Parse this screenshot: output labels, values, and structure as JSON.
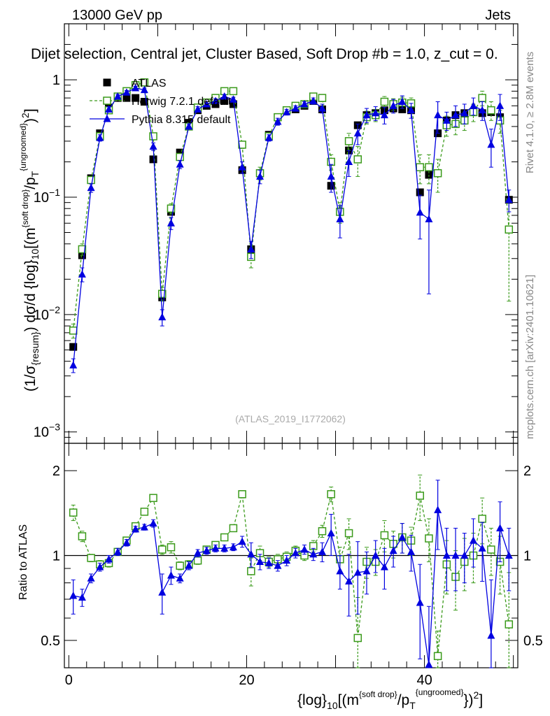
{
  "header": {
    "energy": "13000 GeV pp",
    "process": "Jets",
    "title": "Dijet selection, Central jet, Cluster Based, Soft Drop #b = 1.0, z_cut = 0.",
    "watermark": "(ATLAS_2019_I1772062)",
    "rivet": "Rivet 4.1.0, ≥ 2.8M events",
    "mcplots": "mcplots.cern.ch [arXiv:2401.10621]"
  },
  "colors": {
    "atlas": "#000000",
    "herwig": "#3a9a1a",
    "pythia": "#0000e0"
  },
  "chart_data": [
    {
      "type": "scatter",
      "name": "main-panel",
      "yscale": "log",
      "ylabel": "(1/σ_{resum}) dσ/d {log}_10[(m^{soft drop}/p_T^{ungroomed})^2]",
      "xlim": [
        -0.5,
        50.5
      ],
      "ylim": [
        0.0008,
        3.0
      ],
      "y_ticks": [
        {
          "v": 0.001,
          "label": "10^-3"
        },
        {
          "v": 0.01,
          "label": "10^-2"
        },
        {
          "v": 0.1,
          "label": "10^-1"
        },
        {
          "v": 1,
          "label": "1"
        }
      ],
      "legend": [
        "ATLAS",
        "Herwig 7.2.1 default",
        "Pythia 8.315 default"
      ],
      "legend_position": "top-left",
      "series": [
        {
          "name": "ATLAS",
          "x": [
            0.5,
            1.5,
            2.5,
            3.5,
            4.5,
            5.5,
            6.5,
            7.5,
            8.5,
            9.5,
            10.5,
            11.5,
            12.5,
            13.5,
            14.5,
            15.5,
            16.5,
            17.5,
            18.5,
            19.5,
            20.5,
            21.5,
            22.5,
            23.5,
            24.5,
            25.5,
            26.5,
            27.5,
            28.5,
            29.5,
            30.5,
            31.5,
            32.5,
            33.5,
            34.5,
            35.5,
            36.5,
            37.5,
            38.5,
            39.5,
            40.5,
            41.5,
            42.5,
            43.5,
            44.5,
            45.5,
            46.5,
            47.5,
            48.5,
            49.5
          ],
          "y": [
            0.0053,
            0.032,
            0.145,
            0.35,
            0.58,
            0.7,
            0.7,
            0.7,
            0.65,
            0.21,
            0.014,
            0.075,
            0.24,
            0.43,
            0.55,
            0.6,
            0.62,
            0.66,
            0.62,
            0.17,
            0.036,
            0.16,
            0.34,
            0.48,
            0.55,
            0.56,
            0.6,
            0.66,
            0.56,
            0.125,
            0.075,
            0.25,
            0.41,
            0.5,
            0.52,
            0.55,
            0.57,
            0.56,
            0.55,
            0.11,
            0.155,
            0.35,
            0.45,
            0.5,
            0.52,
            0.53,
            0.52,
            0.53,
            0.48,
            0.095
          ],
          "err": [
            0,
            0,
            0,
            0,
            0,
            0,
            0,
            0,
            0,
            0,
            0,
            0,
            0,
            0,
            0,
            0,
            0,
            0,
            0,
            0,
            0,
            0,
            0,
            0,
            0,
            0,
            0,
            0,
            0,
            0,
            0,
            0,
            0,
            0,
            0,
            0,
            0,
            0,
            0,
            0,
            0,
            0,
            0,
            0,
            0,
            0,
            0,
            0,
            0,
            0
          ]
        },
        {
          "name": "Herwig 7.2.1 default",
          "x": [
            0.5,
            1.5,
            2.5,
            3.5,
            4.5,
            5.5,
            6.5,
            7.5,
            8.5,
            9.5,
            10.5,
            11.5,
            12.5,
            13.5,
            14.5,
            15.5,
            16.5,
            17.5,
            18.5,
            19.5,
            20.5,
            21.5,
            22.5,
            23.5,
            24.5,
            25.5,
            26.5,
            27.5,
            28.5,
            29.5,
            30.5,
            31.5,
            32.5,
            33.5,
            34.5,
            35.5,
            36.5,
            37.5,
            38.5,
            39.5,
            40.5,
            41.5,
            42.5,
            43.5,
            44.5,
            45.5,
            46.5,
            47.5,
            48.5,
            49.5
          ],
          "y": [
            0.0073,
            0.036,
            0.14,
            0.33,
            0.55,
            0.72,
            0.8,
            0.9,
            0.95,
            0.33,
            0.015,
            0.08,
            0.22,
            0.4,
            0.58,
            0.64,
            0.7,
            0.8,
            0.8,
            0.28,
            0.031,
            0.16,
            0.33,
            0.48,
            0.55,
            0.6,
            0.62,
            0.72,
            0.7,
            0.2,
            0.075,
            0.3,
            0.21,
            0.48,
            0.5,
            0.65,
            0.62,
            0.64,
            0.63,
            0.18,
            0.18,
            0.16,
            0.41,
            0.42,
            0.45,
            0.53,
            0.7,
            0.55,
            0.45,
            0.053
          ],
          "err": [
            0.001,
            0.004,
            0.01,
            0.02,
            0.03,
            0.03,
            0.03,
            0.03,
            0.03,
            0.02,
            0.002,
            0.008,
            0.015,
            0.02,
            0.03,
            0.03,
            0.03,
            0.03,
            0.03,
            0.02,
            0.006,
            0.02,
            0.02,
            0.03,
            0.03,
            0.03,
            0.03,
            0.04,
            0.05,
            0.03,
            0.015,
            0.05,
            0.06,
            0.06,
            0.06,
            0.07,
            0.07,
            0.07,
            0.07,
            0.05,
            0.05,
            0.05,
            0.08,
            0.08,
            0.08,
            0.09,
            0.1,
            0.1,
            0.1,
            0.04
          ]
        },
        {
          "name": "Pythia 8.315 default",
          "x": [
            0.5,
            1.5,
            2.5,
            3.5,
            4.5,
            5.5,
            6.5,
            7.5,
            8.5,
            9.5,
            10.5,
            11.5,
            12.5,
            13.5,
            14.5,
            15.5,
            16.5,
            17.5,
            18.5,
            19.5,
            20.5,
            21.5,
            22.5,
            23.5,
            24.5,
            25.5,
            26.5,
            27.5,
            28.5,
            29.5,
            30.5,
            31.5,
            32.5,
            33.5,
            34.5,
            35.5,
            36.5,
            37.5,
            38.5,
            39.5,
            40.5,
            41.5,
            42.5,
            43.5,
            44.5,
            45.5,
            46.5,
            47.5,
            48.5,
            49.5
          ],
          "y": [
            0.0037,
            0.022,
            0.12,
            0.32,
            0.56,
            0.72,
            0.78,
            0.85,
            0.82,
            0.27,
            0.0095,
            0.06,
            0.19,
            0.4,
            0.56,
            0.62,
            0.66,
            0.72,
            0.68,
            0.18,
            0.036,
            0.15,
            0.32,
            0.44,
            0.53,
            0.57,
            0.62,
            0.66,
            0.57,
            0.15,
            0.065,
            0.2,
            0.35,
            0.5,
            0.52,
            0.5,
            0.6,
            0.65,
            0.55,
            0.074,
            0.065,
            0.5,
            0.45,
            0.5,
            0.52,
            0.6,
            0.55,
            0.28,
            0.6,
            0.095
          ],
          "err": [
            0.0005,
            0.003,
            0.01,
            0.02,
            0.03,
            0.03,
            0.03,
            0.03,
            0.03,
            0.02,
            0.0015,
            0.007,
            0.015,
            0.02,
            0.03,
            0.03,
            0.03,
            0.03,
            0.03,
            0.02,
            0.006,
            0.02,
            0.02,
            0.03,
            0.03,
            0.03,
            0.03,
            0.04,
            0.05,
            0.04,
            0.02,
            0.05,
            0.07,
            0.07,
            0.07,
            0.08,
            0.08,
            0.08,
            0.08,
            0.03,
            0.05,
            0.15,
            0.08,
            0.1,
            0.1,
            0.1,
            0.1,
            0.1,
            0.15,
            0.02
          ]
        }
      ]
    },
    {
      "type": "scatter",
      "name": "ratio-panel",
      "yscale": "log",
      "ylabel": "Ratio to ATLAS",
      "xlabel": "{log}_10[(m^{soft drop}/p_T^{ungroomed})^2]",
      "xlim": [
        -0.5,
        50.5
      ],
      "ylim": [
        0.4,
        2.5
      ],
      "x_ticks": [
        0,
        20,
        40
      ],
      "y_ticks": [
        0.5,
        1,
        2
      ],
      "series": [
        {
          "name": "Herwig 7.2.1 default",
          "y": [
            1.42,
            1.17,
            0.98,
            0.93,
            0.94,
            1.03,
            1.13,
            1.27,
            1.43,
            1.6,
            1.05,
            1.07,
            0.92,
            0.93,
            0.96,
            1.05,
            1.09,
            1.16,
            1.25,
            1.65,
            0.88,
            1.02,
            0.95,
            0.97,
            0.99,
            1.04,
            1.0,
            1.08,
            1.22,
            1.65,
            0.97,
            1.2,
            0.51,
            0.95,
            0.95,
            1.18,
            1.1,
            1.16,
            1.13,
            1.63,
            1.15,
            0.44,
            0.93,
            0.84,
            0.95,
            1.0,
            1.35,
            1.05,
            0.95,
            0.57
          ],
          "err": [
            0.09,
            0.05,
            0.03,
            0.03,
            0.03,
            0.03,
            0.03,
            0.03,
            0.03,
            0.04,
            0.04,
            0.05,
            0.03,
            0.03,
            0.03,
            0.03,
            0.03,
            0.03,
            0.03,
            0.05,
            0.1,
            0.06,
            0.04,
            0.04,
            0.04,
            0.04,
            0.04,
            0.05,
            0.06,
            0.1,
            0.1,
            0.15,
            0.2,
            0.12,
            0.1,
            0.15,
            0.12,
            0.14,
            0.13,
            0.3,
            0.2,
            0.1,
            0.2,
            0.2,
            0.2,
            0.2,
            0.25,
            0.2,
            0.22,
            0.3
          ]
        },
        {
          "name": "Pythia 8.315 default",
          "y": [
            0.72,
            0.71,
            0.83,
            0.91,
            0.97,
            1.03,
            1.11,
            1.24,
            1.26,
            1.3,
            0.74,
            0.85,
            0.83,
            0.92,
            1.02,
            1.04,
            1.06,
            1.06,
            1.07,
            1.12,
            1.01,
            0.95,
            0.94,
            0.92,
            0.96,
            1.02,
            1.05,
            1.01,
            1.03,
            1.2,
            0.88,
            0.81,
            0.87,
            0.88,
            1.0,
            0.91,
            1.04,
            1.16,
            1.03,
            0.68,
            0.41,
            1.45,
            1.0,
            1.0,
            1.0,
            1.13,
            1.06,
            0.52,
            1.25,
            1.0
          ],
          "err": [
            0.1,
            0.05,
            0.03,
            0.03,
            0.03,
            0.03,
            0.03,
            0.03,
            0.03,
            0.04,
            0.12,
            0.06,
            0.03,
            0.03,
            0.03,
            0.03,
            0.03,
            0.03,
            0.03,
            0.05,
            0.1,
            0.06,
            0.04,
            0.04,
            0.04,
            0.04,
            0.04,
            0.05,
            0.08,
            0.2,
            0.12,
            0.2,
            0.25,
            0.15,
            0.13,
            0.15,
            0.13,
            0.14,
            0.15,
            0.25,
            0.25,
            0.4,
            0.25,
            0.25,
            0.2,
            0.22,
            0.25,
            0.3,
            0.3,
            0.25
          ]
        }
      ]
    }
  ]
}
